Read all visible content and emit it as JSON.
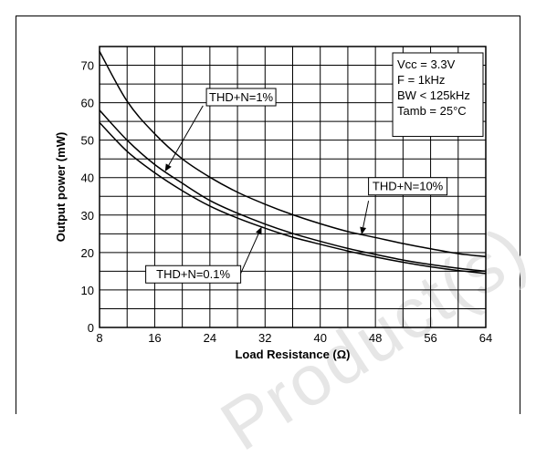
{
  "watermark": "Product(s) - O",
  "chart_data": {
    "type": "line",
    "xlabel": "Load Resistance (Ω)",
    "ylabel": "Output power (mW)",
    "xlim": [
      8,
      64
    ],
    "ylim": [
      0,
      75
    ],
    "x_ticks": [
      8,
      16,
      24,
      32,
      40,
      48,
      56,
      64
    ],
    "y_ticks": [
      0,
      10,
      20,
      30,
      40,
      50,
      60,
      70
    ],
    "grid": true,
    "conditions": [
      "Vcc = 3.3V",
      "F = 1kHz",
      "BW < 125kHz",
      "Tamb = 25°C"
    ],
    "series": [
      {
        "name": "THD+N=10%",
        "x": [
          8,
          12,
          16,
          20,
          24,
          28,
          32,
          36,
          40,
          44,
          48,
          52,
          56,
          60,
          64
        ],
        "values": [
          73.7,
          60.4,
          51.7,
          45.0,
          40.1,
          36.1,
          32.9,
          30.1,
          27.7,
          25.6,
          24.0,
          22.4,
          21.0,
          19.7,
          18.9
        ]
      },
      {
        "name": "THD+N=1%",
        "x": [
          8,
          12,
          16,
          20,
          24,
          28,
          32,
          36,
          40,
          44,
          48,
          52,
          56,
          60,
          64
        ],
        "values": [
          58.0,
          50.0,
          43.5,
          38.5,
          33.9,
          30.5,
          27.6,
          25.1,
          23.0,
          21.1,
          19.5,
          18.0,
          16.8,
          15.8,
          15.0
        ]
      },
      {
        "name": "THD+N=0.1%",
        "x": [
          8,
          12,
          16,
          20,
          24,
          28,
          32,
          36,
          40,
          44,
          48,
          52,
          56,
          60,
          64
        ],
        "values": [
          54.7,
          47.0,
          41.3,
          36.5,
          32.4,
          29.2,
          26.5,
          24.1,
          22.2,
          20.4,
          18.8,
          17.4,
          16.2,
          15.2,
          14.4
        ]
      }
    ],
    "annotations": [
      {
        "label": "THD+N=1%",
        "series": "THD+N=1%",
        "points_to_x": 17.5
      },
      {
        "label": "THD+N=10%",
        "series": "THD+N=10%",
        "points_to_x": 46
      },
      {
        "label": "THD+N=0.1%",
        "series": "THD+N=0.1%",
        "points_to_x": 31.5
      }
    ]
  }
}
